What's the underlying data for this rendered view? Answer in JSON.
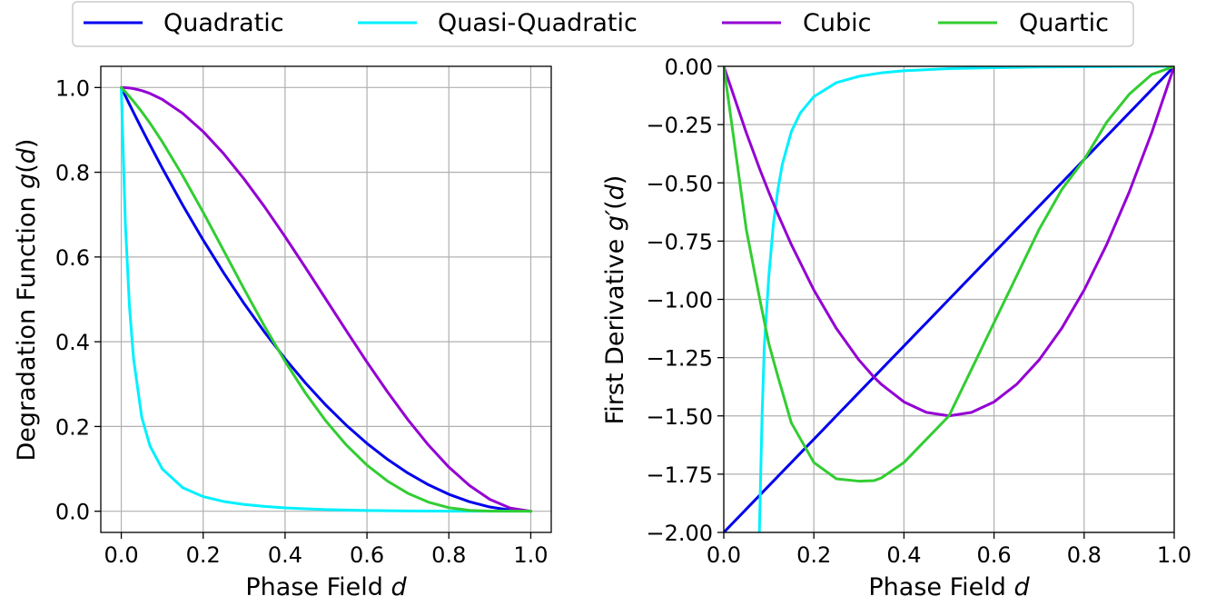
{
  "legend": {
    "items": [
      {
        "label": "Quadratic",
        "color": "#0000ee"
      },
      {
        "label": "Quasi-Quadratic",
        "color": "#00f0ff"
      },
      {
        "label": "Cubic",
        "color": "#9400d3"
      },
      {
        "label": "Quartic",
        "color": "#32cd32"
      }
    ]
  },
  "chart_data": [
    {
      "type": "line",
      "id": "left",
      "xlabel_prefix": "Phase Field ",
      "xlabel_var": "d",
      "ylabel_prefix": "Degradation Function ",
      "ylabel_fn": "g",
      "ylabel_open": "(",
      "ylabel_var": "d",
      "ylabel_close": ")",
      "xlim": [
        -0.05,
        1.05
      ],
      "ylim": [
        -0.05,
        1.05
      ],
      "xticks": [
        0.0,
        0.2,
        0.4,
        0.6,
        0.8,
        1.0
      ],
      "xtick_labels": [
        "0.0",
        "0.2",
        "0.4",
        "0.6",
        "0.8",
        "1.0"
      ],
      "yticks": [
        0.0,
        0.2,
        0.4,
        0.6,
        0.8,
        1.0
      ],
      "ytick_labels": [
        "0.0",
        "0.2",
        "0.4",
        "0.6",
        "0.8",
        "1.0"
      ],
      "grid": true,
      "x": [
        0.0,
        0.01,
        0.02,
        0.03,
        0.05,
        0.07,
        0.1,
        0.15,
        0.2,
        0.25,
        0.3,
        0.35,
        0.4,
        0.45,
        0.5,
        0.55,
        0.6,
        0.65,
        0.7,
        0.75,
        0.8,
        0.85,
        0.9,
        0.95,
        1.0
      ],
      "series": [
        {
          "name": "Quadratic",
          "values": [
            1.0,
            0.9801,
            0.9604,
            0.9409,
            0.9025,
            0.8649,
            0.81,
            0.7225,
            0.64,
            0.5625,
            0.49,
            0.4225,
            0.36,
            0.3025,
            0.25,
            0.2025,
            0.16,
            0.1225,
            0.09,
            0.0625,
            0.04,
            0.0225,
            0.01,
            0.0025,
            0.0
          ]
        },
        {
          "name": "Quasi-Quadratic",
          "values": [
            1.0,
            0.6789,
            0.4832,
            0.3598,
            0.2218,
            0.1542,
            0.1,
            0.0556,
            0.0345,
            0.023,
            0.0159,
            0.0113,
            0.008,
            0.0057,
            0.004,
            0.0028,
            0.0018,
            0.0012,
            0.0007,
            0.0004,
            0.0002,
            0.0001,
            0.0,
            0.0,
            0.0
          ]
        },
        {
          "name": "Cubic",
          "values": [
            1.0,
            0.9997,
            0.9988,
            0.9974,
            0.9928,
            0.986,
            0.972,
            0.939,
            0.896,
            0.8438,
            0.784,
            0.7183,
            0.648,
            0.5748,
            0.5,
            0.4253,
            0.352,
            0.2818,
            0.216,
            0.1563,
            0.104,
            0.061,
            0.028,
            0.0073,
            0.0
          ]
        },
        {
          "name": "Quartic",
          "values": [
            1.0,
            0.9897,
            0.9788,
            0.9674,
            0.9429,
            0.9161,
            0.8722,
            0.7919,
            0.7056,
            0.6152,
            0.5243,
            0.4362,
            0.3536,
            0.2786,
            0.2125,
            0.1559,
            0.1088,
            0.0712,
            0.0423,
            0.0215,
            0.0083,
            0.0021,
            0.0003,
            0.0,
            0.0
          ]
        }
      ]
    },
    {
      "type": "line",
      "id": "right",
      "xlabel_prefix": "Phase Field ",
      "xlabel_var": "d",
      "ylabel_prefix": "First Derivative ",
      "ylabel_fn": "g′",
      "ylabel_open": "(",
      "ylabel_var": "d",
      "ylabel_close": ")",
      "xlim": [
        0.0,
        1.0
      ],
      "ylim": [
        -2.0,
        0.0
      ],
      "xticks": [
        0.0,
        0.2,
        0.4,
        0.6,
        0.8,
        1.0
      ],
      "xtick_labels": [
        "0.0",
        "0.2",
        "0.4",
        "0.6",
        "0.8",
        "1.0"
      ],
      "yticks": [
        0.0,
        -0.25,
        -0.5,
        -0.75,
        -1.0,
        -1.25,
        -1.5,
        -1.75,
        -2.0
      ],
      "ytick_labels": [
        "0.00",
        "−0.25",
        "−0.50",
        "−0.75",
        "−1.00",
        "−1.25",
        "−1.50",
        "−1.75",
        "−2.00"
      ],
      "grid": true,
      "x": [
        0.0,
        0.05,
        0.08,
        0.1,
        0.12,
        0.15,
        0.2,
        0.25,
        0.3,
        0.333,
        0.35,
        0.4,
        0.45,
        0.5,
        0.55,
        0.6,
        0.65,
        0.7,
        0.75,
        0.8,
        0.85,
        0.9,
        0.95,
        1.0
      ],
      "series": [
        {
          "name": "Quadratic",
          "values": [
            -2.0,
            -1.9,
            -1.84,
            -1.8,
            -1.76,
            -1.7,
            -1.6,
            -1.5,
            -1.4,
            -1.334,
            -1.3,
            -1.2,
            -1.1,
            -1.0,
            -0.9,
            -0.8,
            -0.7,
            -0.6,
            -0.5,
            -0.4,
            -0.3,
            -0.2,
            -0.1,
            0.0
          ]
        },
        {
          "name": "Quasi-Quadratic",
          "x": [
            0.079,
            0.085,
            0.09,
            0.1,
            0.11,
            0.12,
            0.13,
            0.15,
            0.17,
            0.2,
            0.25,
            0.3,
            0.35,
            0.4,
            0.5,
            0.6,
            0.7,
            0.8,
            0.9,
            1.0
          ],
          "values": [
            -2.0,
            -1.5,
            -1.2,
            -0.9,
            -0.68,
            -0.53,
            -0.42,
            -0.28,
            -0.2,
            -0.13,
            -0.07,
            -0.043,
            -0.028,
            -0.019,
            -0.01,
            -0.006,
            -0.003,
            -0.0015,
            -0.0005,
            0.0
          ]
        },
        {
          "name": "Cubic",
          "values": [
            0.0,
            -0.285,
            -0.442,
            -0.54,
            -0.634,
            -0.765,
            -0.96,
            -1.125,
            -1.26,
            -1.333,
            -1.365,
            -1.44,
            -1.485,
            -1.5,
            -1.485,
            -1.44,
            -1.365,
            -1.26,
            -1.125,
            -0.96,
            -0.765,
            -0.54,
            -0.285,
            0.0
          ]
        },
        {
          "name": "Quartic",
          "values": [
            0.0,
            -0.7,
            -1.0,
            -1.19,
            -1.33,
            -1.53,
            -1.7,
            -1.77,
            -1.78,
            -1.778,
            -1.766,
            -1.7,
            -1.6,
            -1.5,
            -1.3,
            -1.1,
            -0.9,
            -0.7,
            -0.53,
            -0.4,
            -0.24,
            -0.12,
            -0.035,
            0.0
          ]
        }
      ]
    }
  ]
}
